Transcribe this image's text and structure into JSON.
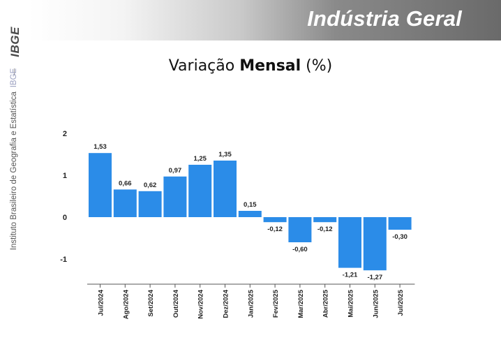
{
  "header": {
    "title": "Indústria Geral"
  },
  "sidebar": {
    "logo": "IBGE",
    "institute": "Instituto Brasileiro de Geografia e Estatística",
    "short": "IBGE"
  },
  "heading": {
    "prefix": "Variação ",
    "bold": "Mensal",
    "suffix": " (%)"
  },
  "colors": {
    "bar": "#2b8ce8",
    "axis": "#555555",
    "text": "#222222"
  },
  "chart_data": {
    "type": "bar",
    "categories": [
      "Jul/2024",
      "Ago/2024",
      "Set/2024",
      "Out/2024",
      "Nov/2024",
      "Dez/2024",
      "Jan/2025",
      "Fev/2025",
      "Mar/2025",
      "Abr/2025",
      "Mai/2025",
      "Jun/2025",
      "Jul/2025"
    ],
    "values": [
      1.53,
      0.66,
      0.62,
      0.97,
      1.25,
      1.35,
      0.15,
      -0.12,
      -0.6,
      -0.12,
      -1.21,
      -1.27,
      -0.3
    ],
    "value_labels": [
      "1,53",
      "0,66",
      "0,62",
      "0,97",
      "1,25",
      "1,35",
      "0,15",
      "-0,12",
      "-0,60",
      "-0,12",
      "-1,21",
      "-1,27",
      "-0,30"
    ],
    "yticks": [
      2,
      1,
      0,
      -1
    ],
    "ylim": [
      -1.5,
      2
    ],
    "title": "Variação Mensal (%)",
    "xlabel": "",
    "ylabel": "",
    "grid": false,
    "legend": "none"
  }
}
